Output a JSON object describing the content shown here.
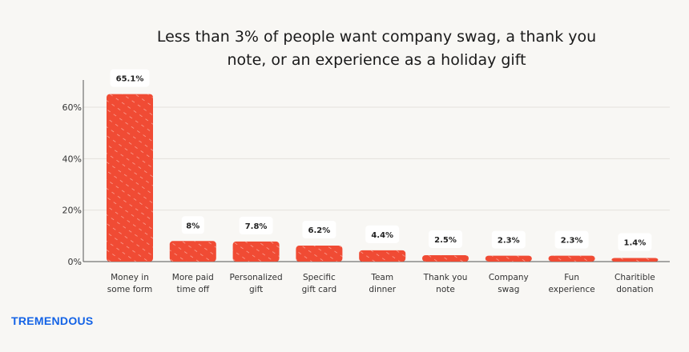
{
  "chart_data": {
    "type": "bar",
    "title": "Less than 3% of people want company swag, a thank you note, or an experience as a holiday gift",
    "categories": [
      [
        "Money in",
        "some form"
      ],
      [
        "More paid",
        "time off"
      ],
      [
        "Personalized",
        "gift"
      ],
      [
        "Specific",
        "gift card"
      ],
      [
        "Team",
        "dinner"
      ],
      [
        "Thank you",
        "note"
      ],
      [
        "Company",
        "swag"
      ],
      [
        "Fun",
        "experience"
      ],
      [
        "Charitible",
        "donation"
      ]
    ],
    "values": [
      65.1,
      8,
      7.8,
      6.2,
      4.4,
      2.5,
      2.3,
      2.3,
      1.4
    ],
    "data_labels": [
      "65.1%",
      "8%",
      "7.8%",
      "6.2%",
      "4.4%",
      "2.5%",
      "2.3%",
      "2.3%",
      "1.4%"
    ],
    "yticks": [
      0,
      20,
      40,
      60
    ],
    "ytick_labels": [
      "0%",
      "20%",
      "40%",
      "60%"
    ],
    "ylim": [
      0,
      70
    ],
    "xlabel": "",
    "ylabel": "",
    "grid": true,
    "bar_color": "#f04b34"
  },
  "brand": {
    "logo_text": "TREMENDOUS",
    "color": "#1463e6"
  }
}
